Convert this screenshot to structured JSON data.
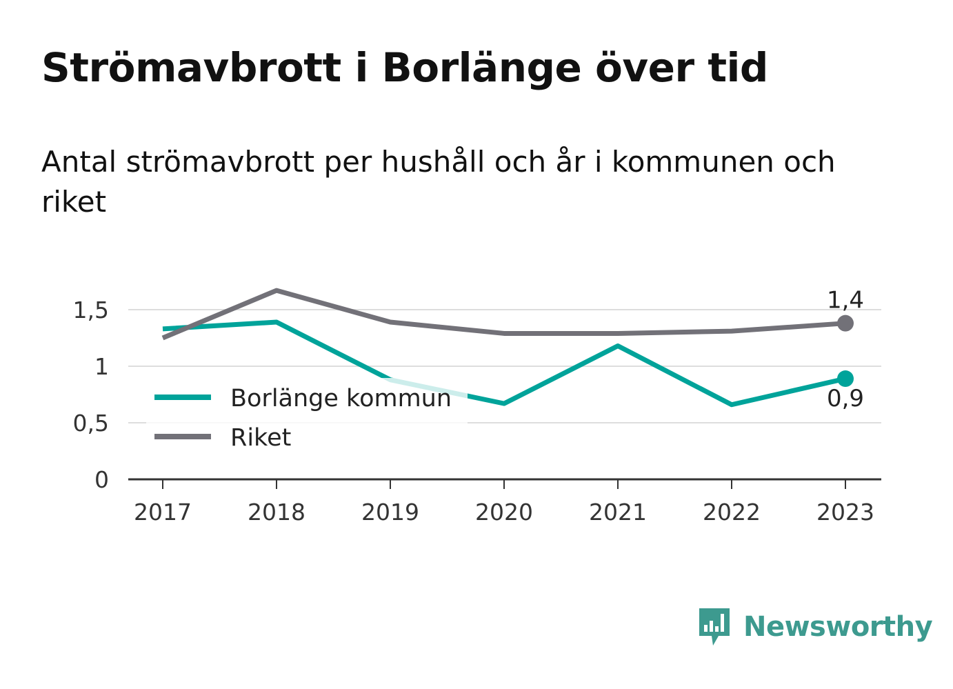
{
  "header": {
    "title": "Strömavbrott i Borlänge över tid",
    "subtitle": "Antal strömavbrott per hushåll och år i kommunen och riket"
  },
  "chart_data": {
    "type": "line",
    "x": [
      "2017",
      "2018",
      "2019",
      "2020",
      "2021",
      "2022",
      "2023"
    ],
    "ylim": [
      0,
      1.67
    ],
    "yticks": [
      0,
      0.5,
      1,
      1.5
    ],
    "ytick_labels": [
      "0",
      "0,5",
      "1",
      "1,5"
    ],
    "grid": true,
    "legend_position": "lower-left",
    "series": [
      {
        "name": "Borlänge kommun",
        "color": "#00a39a",
        "values": [
          1.33,
          1.39,
          0.88,
          0.67,
          1.18,
          0.66,
          0.89
        ],
        "end_label": "0,9"
      },
      {
        "name": "Riket",
        "color": "#727178",
        "values": [
          1.25,
          1.67,
          1.39,
          1.29,
          1.29,
          1.31,
          1.38
        ],
        "end_label": "1,4"
      }
    ]
  },
  "branding": {
    "name": "Newsworthy",
    "color": "#3d9a8f",
    "icon": "newsworthy-chart-icon"
  }
}
